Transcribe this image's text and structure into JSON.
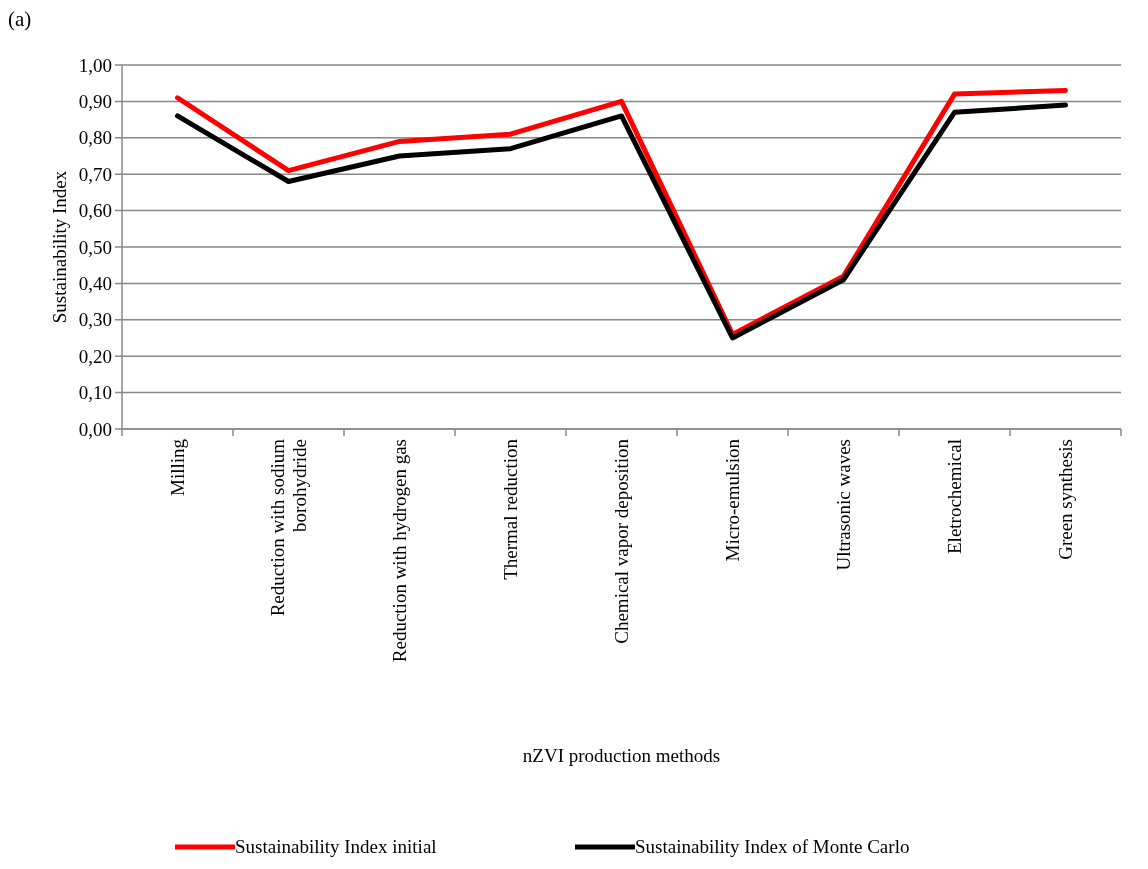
{
  "chart_data": {
    "type": "line",
    "title": "(a)",
    "xlabel": "nZVI production methods",
    "ylabel": "Sustainability Index",
    "categories": [
      "Milling",
      "Reduction with sodium borohydride",
      "Reduction with hydrogen gas",
      "Thermal reduction",
      "Chemical vapor deposition",
      "Micro-emulsion",
      "Ultrasonic waves",
      "Eletrochemical",
      "Green synthesis"
    ],
    "series": [
      {
        "name": "Sustainability Index initial",
        "color": "#ff0000",
        "values": [
          0.91,
          0.71,
          0.79,
          0.81,
          0.9,
          0.26,
          0.42,
          0.92,
          0.93
        ]
      },
      {
        "name": "Sustainability Index of Monte Carlo",
        "color": "#000000",
        "values": [
          0.86,
          0.68,
          0.75,
          0.77,
          0.86,
          0.25,
          0.41,
          0.87,
          0.89
        ]
      }
    ],
    "ylim": [
      0,
      1
    ],
    "yticks": [
      {
        "value": 0,
        "label": "0,00"
      },
      {
        "value": 0.1,
        "label": "0,10"
      },
      {
        "value": 0.2,
        "label": "0,20"
      },
      {
        "value": 0.3,
        "label": "0,30"
      },
      {
        "value": 0.4,
        "label": "0,40"
      },
      {
        "value": 0.5,
        "label": "0,50"
      },
      {
        "value": 0.6,
        "label": "0,60"
      },
      {
        "value": 0.7,
        "label": "0,70"
      },
      {
        "value": 0.8,
        "label": "0,80"
      },
      {
        "value": 0.9,
        "label": "0,90"
      },
      {
        "value": 1,
        "label": "1,00"
      }
    ],
    "grid": "y",
    "legend": "bottom",
    "marker": "none",
    "line_style": "solid"
  }
}
